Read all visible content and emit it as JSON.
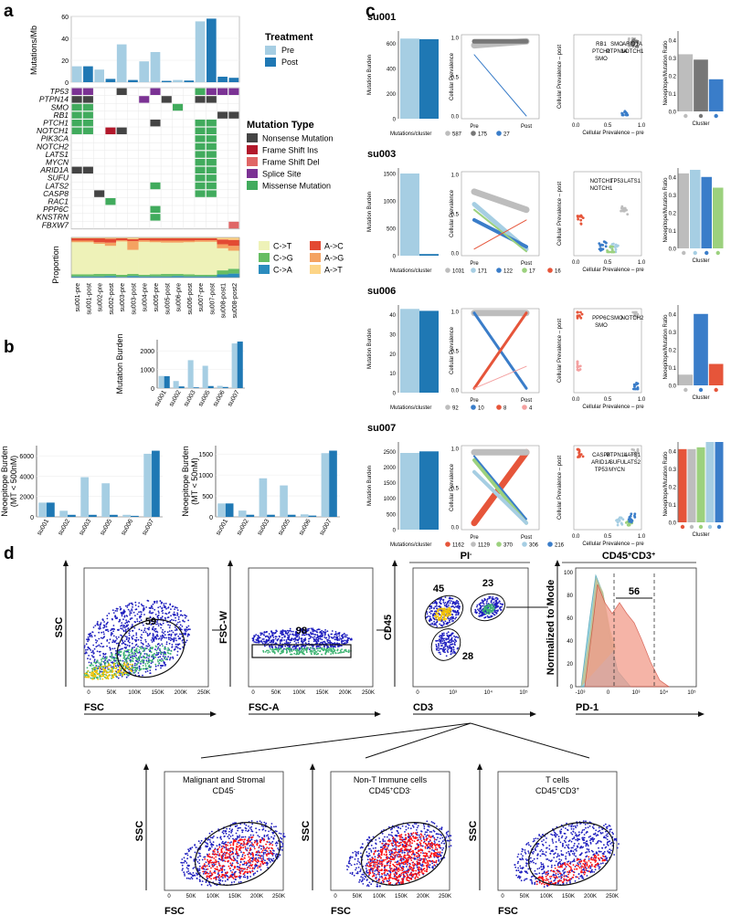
{
  "panels": {
    "a": "a",
    "b": "b",
    "c": "c",
    "d": "d"
  },
  "colors": {
    "pre": "#a6cee3",
    "post": "#1f78b4",
    "nonsense": "#444444",
    "frameins": "#b2182b",
    "framedel": "#e06666",
    "splice": "#7b3294",
    "missense": "#41ab5d",
    "ct": "#eef2b8",
    "ag": "#f4a261",
    "cg": "#66bd63",
    "ca": "#2b8cbe",
    "ac": "#e34a33",
    "at": "#fdd587",
    "grey": "#bdbdbd",
    "red": "#e6553a",
    "flowBlue": "#1f1fbf",
    "flowRed": "#ff1010"
  },
  "a": {
    "ylabel": "Mutations/Mb",
    "yticks": [
      "0",
      "20",
      "40",
      "60"
    ],
    "samples": [
      "su001-pre",
      "su001-post",
      "su002-pre",
      "su002-post",
      "su003-pre",
      "su003-post",
      "su004-pre",
      "su005-pre",
      "su005-post",
      "su006-pre",
      "su006-post",
      "su007-pre",
      "su007-post",
      "su008-post1",
      "su008-post2"
    ],
    "sample_treatment": [
      "Pre",
      "Post",
      "Pre",
      "Post",
      "Pre",
      "Post",
      "Pre",
      "Pre",
      "Post",
      "Pre",
      "Post",
      "Pre",
      "Post",
      "Post",
      "Post"
    ],
    "tmb": [
      14.5,
      14.5,
      11.5,
      3,
      34.5,
      2,
      19,
      27.5,
      1.2,
      2,
      1.5,
      55.5,
      58,
      5,
      4
    ],
    "treatment_legend": {
      "title": "Treatment",
      "items": [
        "Pre",
        "Post"
      ]
    },
    "genes": [
      "TP53",
      "PTPN14",
      "SMO",
      "RB1",
      "PTCH1",
      "NOTCH1",
      "PIK3CA",
      "NOTCH2",
      "LATS1",
      "MYCN",
      "ARID1A",
      "SUFU",
      "LATS2",
      "CASP8",
      "RAC1",
      "PPP6C",
      "KNSTRN",
      "FBXW7"
    ],
    "mutation_legend": {
      "title": "Mutation Type",
      "items": [
        "Nonsense Mutation",
        "Frame Shift Ins",
        "Frame Shift Del",
        "Splice Site",
        "Missense Mutation"
      ]
    },
    "mutations": [
      [
        "TP53",
        0,
        "splice"
      ],
      [
        "TP53",
        1,
        "splice"
      ],
      [
        "TP53",
        4,
        "nonsense"
      ],
      [
        "TP53",
        7,
        "splice"
      ],
      [
        "TP53",
        11,
        "missense"
      ],
      [
        "TP53",
        12,
        "splice"
      ],
      [
        "TP53",
        13,
        "splice"
      ],
      [
        "TP53",
        14,
        "splice"
      ],
      [
        "PTPN14",
        0,
        "nonsense"
      ],
      [
        "PTPN14",
        1,
        "nonsense"
      ],
      [
        "PTPN14",
        6,
        "splice"
      ],
      [
        "PTPN14",
        8,
        "nonsense"
      ],
      [
        "PTPN14",
        11,
        "nonsense"
      ],
      [
        "PTPN14",
        12,
        "nonsense"
      ],
      [
        "SMO",
        0,
        "missense"
      ],
      [
        "SMO",
        1,
        "missense"
      ],
      [
        "SMO",
        9,
        "missense"
      ],
      [
        "RB1",
        0,
        "missense"
      ],
      [
        "RB1",
        1,
        "missense"
      ],
      [
        "RB1",
        13,
        "nonsense"
      ],
      [
        "RB1",
        14,
        "nonsense"
      ],
      [
        "PTCH1",
        0,
        "missense"
      ],
      [
        "PTCH1",
        1,
        "missense"
      ],
      [
        "PTCH1",
        7,
        "nonsense"
      ],
      [
        "PTCH1",
        11,
        "missense"
      ],
      [
        "PTCH1",
        12,
        "missense"
      ],
      [
        "NOTCH1",
        0,
        "missense"
      ],
      [
        "NOTCH1",
        1,
        "missense"
      ],
      [
        "NOTCH1",
        3,
        "frameins"
      ],
      [
        "NOTCH1",
        4,
        "nonsense"
      ],
      [
        "NOTCH1",
        11,
        "missense"
      ],
      [
        "NOTCH1",
        12,
        "missense"
      ],
      [
        "PIK3CA",
        11,
        "missense"
      ],
      [
        "PIK3CA",
        12,
        "missense"
      ],
      [
        "NOTCH2",
        11,
        "missense"
      ],
      [
        "NOTCH2",
        12,
        "missense"
      ],
      [
        "LATS1",
        11,
        "missense"
      ],
      [
        "LATS1",
        12,
        "missense"
      ],
      [
        "MYCN",
        11,
        "missense"
      ],
      [
        "MYCN",
        12,
        "missense"
      ],
      [
        "ARID1A",
        0,
        "nonsense"
      ],
      [
        "ARID1A",
        1,
        "nonsense"
      ],
      [
        "ARID1A",
        11,
        "missense"
      ],
      [
        "ARID1A",
        12,
        "missense"
      ],
      [
        "SUFU",
        11,
        "missense"
      ],
      [
        "SUFU",
        12,
        "missense"
      ],
      [
        "LATS2",
        7,
        "missense"
      ],
      [
        "LATS2",
        11,
        "missense"
      ],
      [
        "LATS2",
        12,
        "missense"
      ],
      [
        "CASP8",
        2,
        "nonsense"
      ],
      [
        "CASP8",
        11,
        "missense"
      ],
      [
        "CASP8",
        12,
        "missense"
      ],
      [
        "RAC1",
        3,
        "missense"
      ],
      [
        "PPP6C",
        7,
        "missense"
      ],
      [
        "KNSTRN",
        7,
        "missense"
      ],
      [
        "FBXW7",
        14,
        "framedel"
      ]
    ],
    "prop_ylabel": "Proportion",
    "sig_legend": [
      "C->T",
      "A->C",
      "C->G",
      "A->G",
      "C->A",
      "A->T"
    ],
    "sig_keys": [
      "ct",
      "ac",
      "cg",
      "ag",
      "ca",
      "at"
    ],
    "proportions": [
      [
        0.8,
        0.06,
        0.05,
        0.04,
        0.03,
        0.02
      ],
      [
        0.8,
        0.06,
        0.05,
        0.04,
        0.03,
        0.02
      ],
      [
        0.75,
        0.1,
        0.06,
        0.04,
        0.03,
        0.02
      ],
      [
        0.7,
        0.1,
        0.05,
        0.08,
        0.04,
        0.03
      ],
      [
        0.83,
        0.05,
        0.05,
        0.03,
        0.02,
        0.02
      ],
      [
        0.6,
        0.05,
        0.05,
        0.22,
        0.04,
        0.04
      ],
      [
        0.82,
        0.05,
        0.04,
        0.04,
        0.03,
        0.02
      ],
      [
        0.8,
        0.06,
        0.05,
        0.04,
        0.03,
        0.02
      ],
      [
        0.78,
        0.06,
        0.06,
        0.05,
        0.03,
        0.02
      ],
      [
        0.78,
        0.06,
        0.05,
        0.05,
        0.04,
        0.02
      ],
      [
        0.8,
        0.06,
        0.05,
        0.04,
        0.03,
        0.02
      ],
      [
        0.82,
        0.05,
        0.04,
        0.04,
        0.03,
        0.02
      ],
      [
        0.82,
        0.05,
        0.04,
        0.04,
        0.03,
        0.02
      ],
      [
        0.55,
        0.12,
        0.1,
        0.1,
        0.08,
        0.05
      ],
      [
        0.45,
        0.15,
        0.12,
        0.12,
        0.1,
        0.06
      ]
    ]
  },
  "chart_data": {
    "type": "bar",
    "categories": [
      "su001",
      "su002",
      "su003",
      "su005",
      "su006",
      "su007"
    ],
    "series": [
      {
        "name": "Pre",
        "values": [
          650,
          380,
          1500,
          1200,
          120,
          2400
        ]
      },
      {
        "name": "Post",
        "values": [
          640,
          90,
          40,
          110,
          60,
          2500
        ]
      }
    ],
    "ylabel": "Mutation Burden",
    "ylim": [
      0,
      2600
    ],
    "yticks": [
      "0",
      "1000",
      "2000"
    ]
  },
  "b": {
    "neo500": {
      "ylabel1": "Neoepitope Burden",
      "ylabel2": "(MT < 500nM)",
      "yticks": [
        "0",
        "2000",
        "4000",
        "6000"
      ],
      "ylim": [
        0,
        7000
      ],
      "pre": [
        1400,
        600,
        3900,
        3300,
        200,
        6200
      ],
      "post": [
        1400,
        200,
        200,
        200,
        100,
        6500
      ]
    },
    "neo50": {
      "ylabel1": "Neoepitope Burden",
      "ylabel2": "(MT < 50nM)",
      "yticks": [
        "0",
        "500",
        "1000",
        "1500"
      ],
      "ylim": [
        0,
        1700
      ],
      "pre": [
        320,
        150,
        920,
        750,
        60,
        1520
      ],
      "post": [
        320,
        50,
        50,
        50,
        30,
        1580
      ]
    }
  },
  "c": {
    "ylabel_burden": "Mutation Burden",
    "ylabel_prev": "Cellular Prevalence",
    "xlabel_prev": [
      "Pre",
      "Post"
    ],
    "scatter_y": "Cellular Prevalence – post",
    "scatter_x": "Cellular Prevalence – pre",
    "ratio_y": "Neoepitope/Mutation Ratio",
    "ratio_x": "Cluster",
    "prev_ticks": [
      "0.0",
      "0.5",
      "1.0"
    ],
    "ratio_ticks": [
      "0.0",
      "0.1",
      "0.2",
      "0.3",
      "0.4"
    ],
    "mut_cluster_label": "Mutations/cluster",
    "rows": [
      {
        "id": "su001",
        "burden_ticks": [
          "0",
          "200",
          "400",
          "600"
        ],
        "burden_max": 700,
        "pre": 640,
        "post": 635,
        "clusters": [
          {
            "n": "587",
            "c": "#bdbdbd"
          },
          {
            "n": "175",
            "c": "#777777"
          },
          {
            "n": "27",
            "c": "#3a7dc9"
          }
        ],
        "lines": [
          [
            0.9,
            0.95,
            "#bdbdbd",
            7
          ],
          [
            0.95,
            0.95,
            "#777777",
            5
          ],
          [
            0.78,
            0.0,
            "#3a7dc9",
            1
          ]
        ],
        "ratios": [
          0.32,
          0.29,
          0.18
        ],
        "genes": [
          "RB1",
          "SMO",
          "ARID1A",
          "PTCH1",
          "PTPN14",
          "NOTCH1",
          "SMO"
        ]
      },
      {
        "id": "su003",
        "burden_ticks": [
          "0",
          "500",
          "1000",
          "1500"
        ],
        "burden_max": 1600,
        "pre": 1500,
        "post": 30,
        "clusters": [
          {
            "n": "1031",
            "c": "#bdbdbd"
          },
          {
            "n": "171",
            "c": "#a6cee3"
          },
          {
            "n": "122",
            "c": "#3a7dc9"
          },
          {
            "n": "17",
            "c": "#9cd17e"
          },
          {
            "n": "16",
            "c": "#e6553a"
          }
        ],
        "lines": [
          [
            0.78,
            0.55,
            "#bdbdbd",
            7
          ],
          [
            0.62,
            0.05,
            "#a6cee3",
            5
          ],
          [
            0.42,
            0.08,
            "#3a7dc9",
            4
          ],
          [
            0.55,
            0.02,
            "#9cd17e",
            2
          ],
          [
            0.05,
            0.42,
            "#e6553a",
            1
          ]
        ],
        "ratios": [
          0.42,
          0.44,
          0.4,
          0.34
        ],
        "genes": [
          "NOTCH1",
          "TP53",
          "LATS1",
          "NOTCH1"
        ]
      },
      {
        "id": "su006",
        "burden_ticks": [
          "0",
          "10",
          "20",
          "30",
          "40"
        ],
        "burden_max": 45,
        "pre": 43,
        "post": 42,
        "clusters": [
          {
            "n": "92",
            "c": "#bdbdbd"
          },
          {
            "n": "10",
            "c": "#3a7dc9"
          },
          {
            "n": "8",
            "c": "#e6553a"
          },
          {
            "n": "4",
            "c": "#f4a0a0"
          }
        ],
        "lines": [
          [
            0.98,
            0.98,
            "#bdbdbd",
            7
          ],
          [
            0.98,
            0.02,
            "#3a7dc9",
            3
          ],
          [
            0.02,
            0.98,
            "#e6553a",
            3
          ],
          [
            0.02,
            0.3,
            "#f4a0a0",
            1
          ]
        ],
        "ratios": [
          0.06,
          0.4,
          0.12
        ],
        "genes": [
          "PPP6C",
          "SMO",
          "NOTCH2",
          "SMO"
        ]
      },
      {
        "id": "su007",
        "burden_ticks": [
          "0",
          "500",
          "1000",
          "1500",
          "2000",
          "2500"
        ],
        "burden_max": 2800,
        "pre": 2450,
        "post": 2500,
        "clusters": [
          {
            "n": "1162",
            "c": "#e6553a"
          },
          {
            "n": "1129",
            "c": "#bdbdbd"
          },
          {
            "n": "370",
            "c": "#9cd17e"
          },
          {
            "n": "306",
            "c": "#a6cee3"
          },
          {
            "n": "216",
            "c": "#3a7dc9"
          }
        ],
        "lines": [
          [
            0.05,
            0.95,
            "#e6553a",
            7
          ],
          [
            0.95,
            0.95,
            "#bdbdbd",
            7
          ],
          [
            0.85,
            0.05,
            "#9cd17e",
            4
          ],
          [
            0.7,
            0.05,
            "#a6cee3",
            4
          ],
          [
            0.9,
            0.1,
            "#3a7dc9",
            2
          ]
        ],
        "ratios": [
          0.41,
          0.41,
          0.42,
          0.45,
          0.45
        ],
        "genes": [
          "CASP8",
          "PTPN14",
          "LATS1",
          "ARID1A",
          "SUFU",
          "LATS2",
          "TP53",
          "MYCN"
        ]
      }
    ]
  },
  "d": {
    "p1": {
      "y": "SSC",
      "x": "FSC",
      "gate": "59"
    },
    "p2": {
      "y": "FSC-W",
      "x": "FSC-A",
      "gate": "98"
    },
    "p3": {
      "header": "PI",
      "sup": "-",
      "y": "CD45",
      "x": "CD3",
      "gates": [
        "45",
        "23",
        "28"
      ]
    },
    "p4": {
      "header": "CD45",
      "sup1": "+",
      "mid": "CD3",
      "sup2": "+",
      "y": "Normalized to Mode",
      "x": "PD-1",
      "gate": "56",
      "yticks": [
        "0",
        "20",
        "40",
        "60",
        "80",
        "100"
      ]
    },
    "fsc_ticks": [
      "0",
      "50K",
      "100K",
      "150K",
      "200K",
      "250K"
    ],
    "cd3_ticks": [
      "0",
      "10³",
      "10⁴",
      "10⁵"
    ],
    "cd45_ticks": [
      "0",
      "10³",
      "10⁴",
      "10⁵"
    ],
    "pd1_ticks": [
      "-10³",
      "0",
      "10³",
      "10⁴",
      "10⁵"
    ],
    "bottom": [
      {
        "t1": "Malignant and Stromal",
        "t2": "CD45",
        "s2": "-",
        "t3": ""
      },
      {
        "t1": "Non-T Immune cells",
        "t2": "CD45",
        "s2": "+",
        "t3": "CD3",
        "s3": "-"
      },
      {
        "t1": "T cells",
        "t2": "CD45",
        "s2": "+",
        "t3": "CD3",
        "s3": "+"
      }
    ],
    "bottom_y": "SSC",
    "bottom_x": "FSC"
  }
}
